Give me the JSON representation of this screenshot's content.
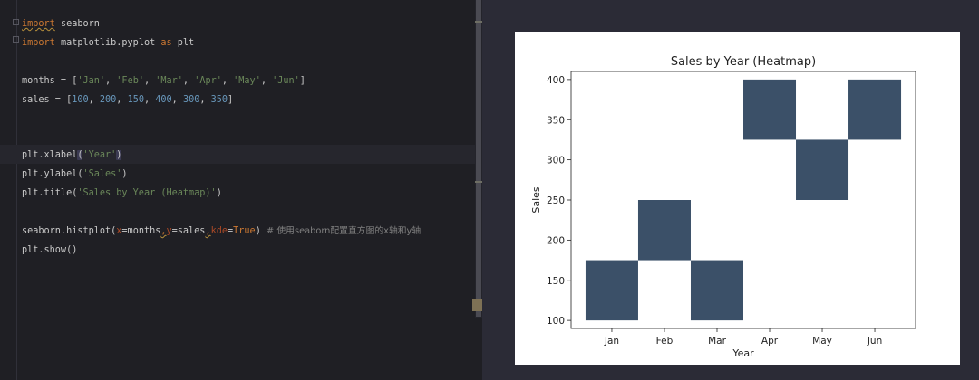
{
  "editor": {
    "lines": {
      "l1": {
        "kw": "import",
        "rest": " seaborn"
      },
      "l2": {
        "kw": "import",
        "mid": " matplotlib.pyplot ",
        "kw2": "as",
        "rest": " plt"
      },
      "l3": {
        "a": "months = [",
        "s1": "'Jan'",
        "c1": ", ",
        "s2": "'Feb'",
        "c2": ", ",
        "s3": "'Mar'",
        "c3": ", ",
        "s4": "'Apr'",
        "c4": ", ",
        "s5": "'May'",
        "c5": ", ",
        "s6": "'Jun'",
        "end": "]"
      },
      "l4": {
        "a": "sales = [",
        "n1": "100",
        "c1": ", ",
        "n2": "200",
        "c2": ", ",
        "n3": "150",
        "c3": ", ",
        "n4": "400",
        "c4": ", ",
        "n5": "300",
        "c5": ", ",
        "n6": "350",
        "end": "]"
      },
      "l5": {
        "a": "plt.xlabel",
        "open": "(",
        "s": "'Year'",
        "close": ")"
      },
      "l6": {
        "a": "plt.ylabel(",
        "s": "'Sales'",
        "end": ")"
      },
      "l7": {
        "a": "plt.title(",
        "s": "'Sales by Year (Heatmap)'",
        "end": ")"
      },
      "l8": {
        "a": "seaborn.histplot(",
        "p1": "x",
        "e1": "=months",
        "c1": ",",
        "p2": "y",
        "e2": "=sales",
        "c2": ",",
        "p3": "kde",
        "e3": "=",
        "k": "True",
        "end": ")",
        "cmt": "  # 使用seaborn配置直方图的x轴和y轴"
      },
      "l9": {
        "a": "plt.show()"
      }
    }
  },
  "chart_data": {
    "type": "heatmap",
    "title": "Sales by Year (Heatmap)",
    "xlabel": "Year",
    "ylabel": "Sales",
    "categories": [
      "Jan",
      "Feb",
      "Mar",
      "Apr",
      "May",
      "Jun"
    ],
    "values": [
      100,
      200,
      150,
      400,
      300,
      350
    ],
    "cells": [
      {
        "x": "Jan",
        "y0": 100,
        "y1": 175
      },
      {
        "x": "Feb",
        "y0": 175,
        "y1": 250
      },
      {
        "x": "Mar",
        "y0": 100,
        "y1": 175
      },
      {
        "x": "Apr",
        "y0": 325,
        "y1": 400
      },
      {
        "x": "May",
        "y0": 250,
        "y1": 325
      },
      {
        "x": "Jun",
        "y0": 325,
        "y1": 400
      }
    ],
    "yticks": [
      100,
      150,
      200,
      250,
      300,
      350,
      400
    ],
    "ylim": [
      90,
      410
    ],
    "grid": false,
    "color": "#3b5068"
  }
}
